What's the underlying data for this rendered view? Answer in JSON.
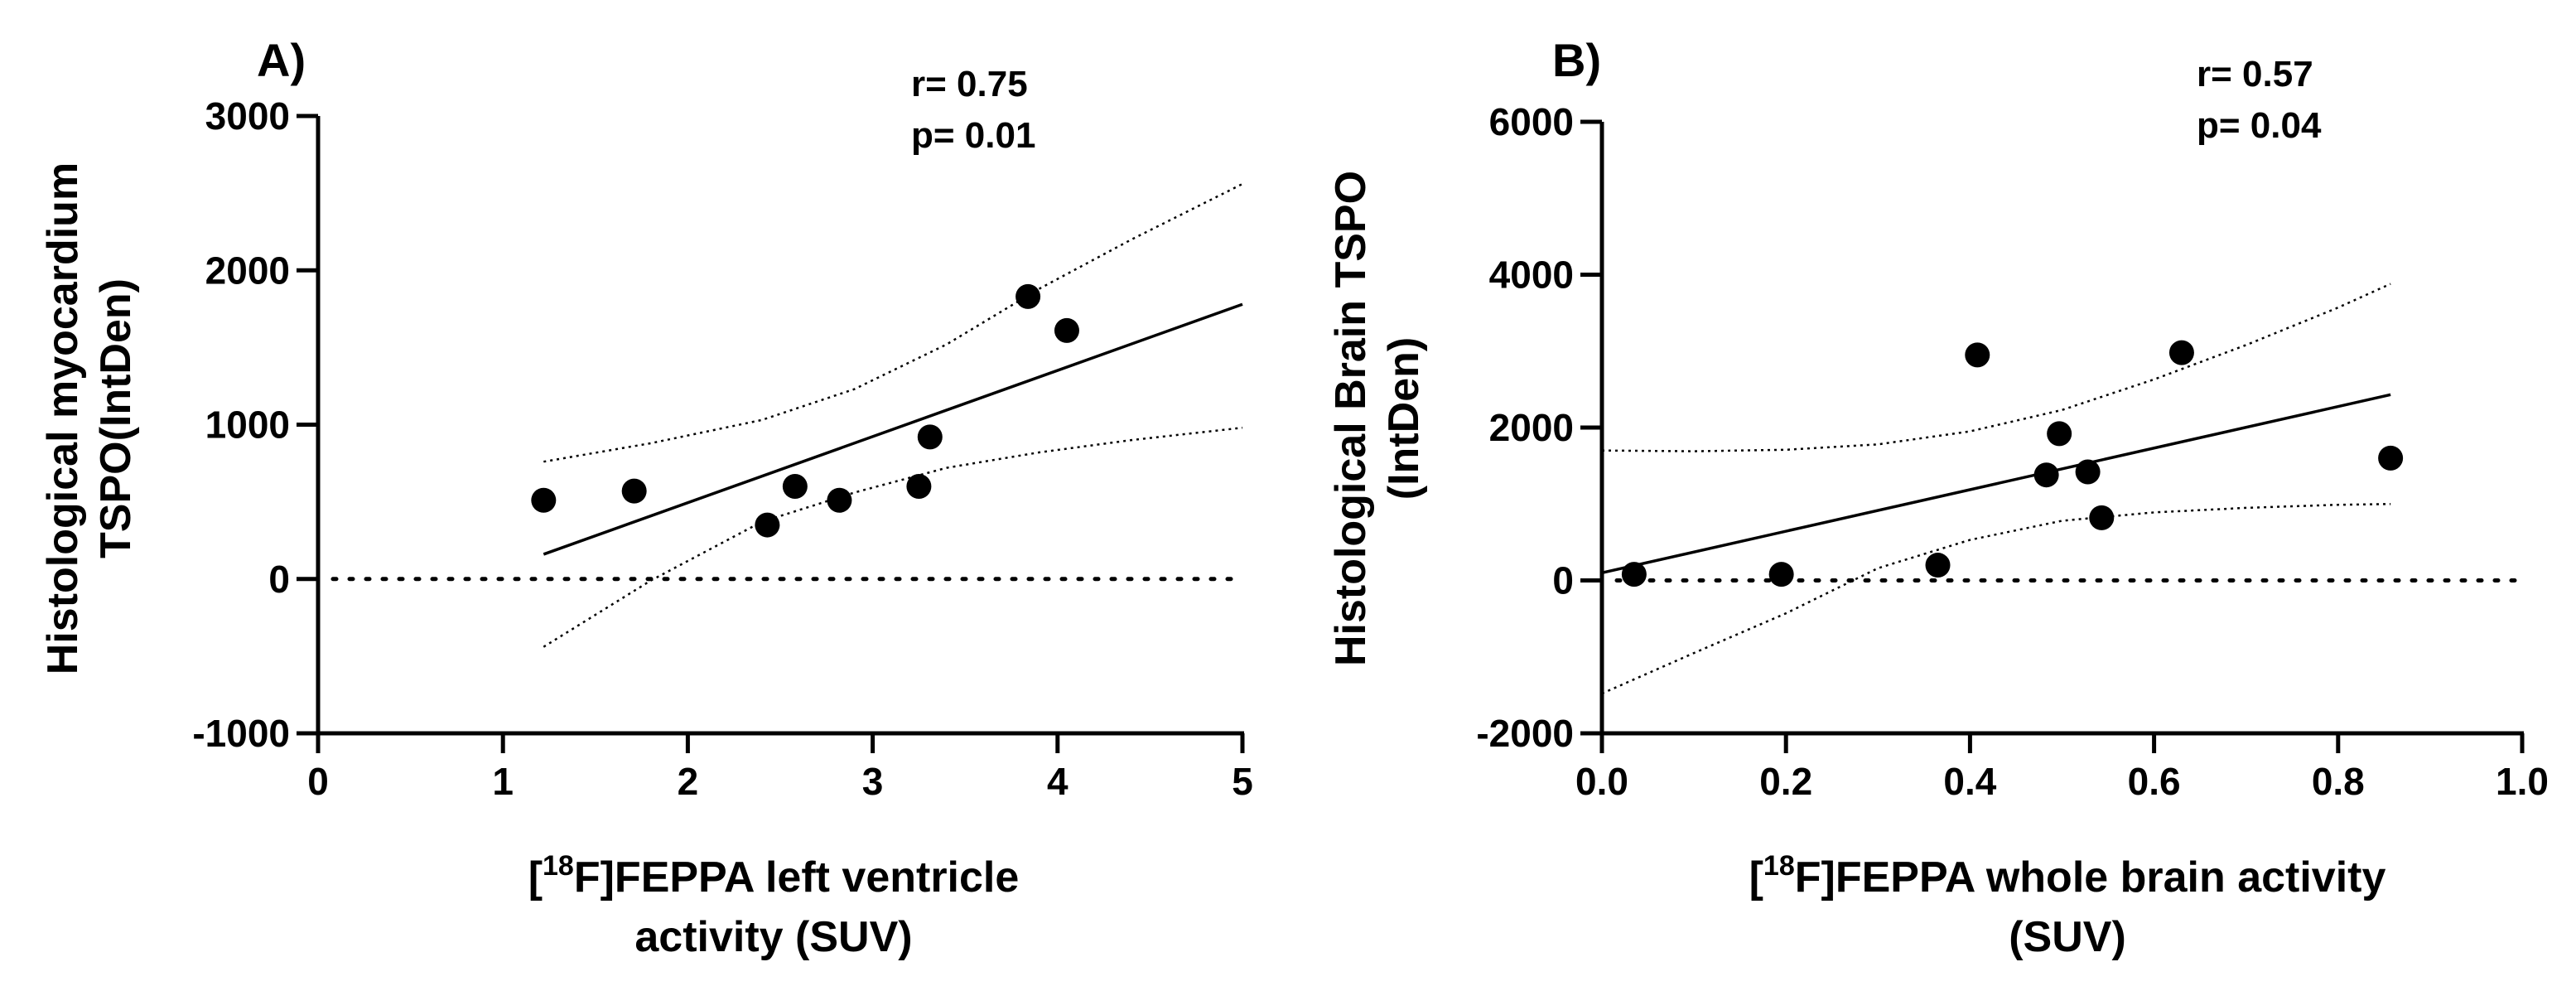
{
  "colors": {
    "ink": "#000000",
    "background": "#ffffff"
  },
  "chart_data": [
    {
      "panel": "A)",
      "type": "scatter",
      "xlabel": {
        "prefix": "[",
        "sup": "18",
        "main": "F]FEPPA left ventricle",
        "line2": "activity (SUV)"
      },
      "ylabel": {
        "line1": "Histological myocardium",
        "line2": "TSPO(IntDen)"
      },
      "stats": {
        "r": "r= 0.75",
        "p": "p= 0.01"
      },
      "xlim": [
        0,
        5
      ],
      "ylim": [
        -1000,
        3000
      ],
      "xticks": [
        0,
        1,
        2,
        3,
        4,
        5
      ],
      "xtick_labels": [
        "0",
        "1",
        "2",
        "3",
        "4",
        "5"
      ],
      "yticks": [
        -1000,
        0,
        1000,
        2000,
        3000
      ],
      "ytick_labels": [
        "-1000",
        "0",
        "1000",
        "2000",
        "3000"
      ],
      "points": [
        {
          "x": 1.22,
          "y": 510
        },
        {
          "x": 1.71,
          "y": 570
        },
        {
          "x": 2.43,
          "y": 350
        },
        {
          "x": 2.58,
          "y": 600
        },
        {
          "x": 2.82,
          "y": 510
        },
        {
          "x": 3.25,
          "y": 600
        },
        {
          "x": 3.31,
          "y": 920
        },
        {
          "x": 3.84,
          "y": 1830
        },
        {
          "x": 4.05,
          "y": 1610
        }
      ],
      "fit": {
        "x": [
          1.22,
          5.0
        ],
        "y": [
          160,
          1780
        ]
      },
      "ci_upper": {
        "x": [
          1.22,
          1.8,
          2.4,
          2.9,
          3.4,
          3.9,
          4.4,
          5.0
        ],
        "y": [
          760,
          880,
          1030,
          1230,
          1520,
          1880,
          2200,
          2560
        ]
      },
      "ci_lower": {
        "x": [
          1.22,
          1.8,
          2.4,
          2.9,
          3.4,
          3.9,
          4.4,
          5.0
        ],
        "y": [
          -440,
          -10,
          370,
          560,
          720,
          820,
          900,
          980
        ]
      },
      "zero_line": 0
    },
    {
      "panel": "B)",
      "type": "scatter",
      "xlabel": {
        "prefix": "[",
        "sup": "18",
        "main": "F]FEPPA whole brain activity",
        "line2": "(SUV)"
      },
      "ylabel": {
        "line1": "Histological Brain TSPO",
        "line2": "(IntDen)"
      },
      "stats": {
        "r": "r= 0.57",
        "p": "p= 0.04"
      },
      "xlim": [
        0,
        1.0
      ],
      "ylim": [
        -2000,
        6000
      ],
      "xticks": [
        0,
        0.2,
        0.4,
        0.6,
        0.8,
        1.0
      ],
      "xtick_labels": [
        "0.0",
        "0.2",
        "0.4",
        "0.6",
        "0.8",
        "1.0"
      ],
      "yticks": [
        -2000,
        0,
        2000,
        4000,
        6000
      ],
      "ytick_labels": [
        "-2000",
        "0",
        "2000",
        "4000",
        "6000"
      ],
      "points": [
        {
          "x": 0.035,
          "y": 80
        },
        {
          "x": 0.195,
          "y": 80
        },
        {
          "x": 0.365,
          "y": 200
        },
        {
          "x": 0.408,
          "y": 2950
        },
        {
          "x": 0.483,
          "y": 1380
        },
        {
          "x": 0.497,
          "y": 1920
        },
        {
          "x": 0.528,
          "y": 1420
        },
        {
          "x": 0.543,
          "y": 820
        },
        {
          "x": 0.63,
          "y": 2980
        },
        {
          "x": 0.857,
          "y": 1600
        }
      ],
      "fit": {
        "x": [
          0.0,
          0.857
        ],
        "y": [
          100,
          2430
        ]
      },
      "ci_upper": {
        "x": [
          0.0,
          0.1,
          0.2,
          0.3,
          0.4,
          0.5,
          0.6,
          0.7,
          0.8,
          0.857
        ],
        "y": [
          1700,
          1690,
          1710,
          1780,
          1950,
          2230,
          2630,
          3080,
          3570,
          3880
        ]
      },
      "ci_lower": {
        "x": [
          0.0,
          0.1,
          0.2,
          0.3,
          0.4,
          0.5,
          0.6,
          0.7,
          0.8,
          0.857
        ],
        "y": [
          -1480,
          -950,
          -430,
          160,
          530,
          780,
          890,
          950,
          990,
          1000
        ]
      },
      "zero_line": 0
    }
  ]
}
